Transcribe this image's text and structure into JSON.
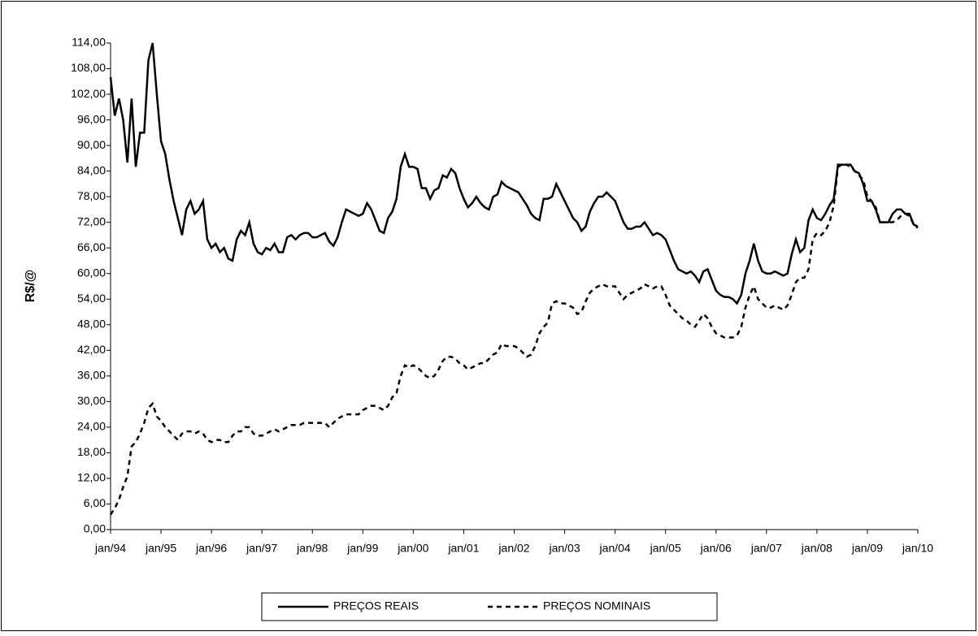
{
  "chart_data": {
    "type": "line",
    "y_label": "R$/@",
    "categories": [
      "jan/94",
      null,
      null,
      null,
      null,
      null,
      null,
      null,
      null,
      null,
      null,
      null,
      "jan/95",
      null,
      null,
      null,
      null,
      null,
      null,
      null,
      null,
      null,
      null,
      null,
      "jan/96",
      null,
      null,
      null,
      null,
      null,
      null,
      null,
      null,
      null,
      null,
      null,
      "jan/97",
      null,
      null,
      null,
      null,
      null,
      null,
      null,
      null,
      null,
      null,
      null,
      "jan/98",
      null,
      null,
      null,
      null,
      null,
      null,
      null,
      null,
      null,
      null,
      null,
      "jan/99",
      null,
      null,
      null,
      null,
      null,
      null,
      null,
      null,
      null,
      null,
      null,
      "jan/00",
      null,
      null,
      null,
      null,
      null,
      null,
      null,
      null,
      null,
      null,
      null,
      "jan/01",
      null,
      null,
      null,
      null,
      null,
      null,
      null,
      null,
      null,
      null,
      null,
      "jan/02",
      null,
      null,
      null,
      null,
      null,
      null,
      null,
      null,
      null,
      null,
      null,
      "jan/03",
      null,
      null,
      null,
      null,
      null,
      null,
      null,
      null,
      null,
      null,
      null,
      "jan/04",
      null,
      null,
      null,
      null,
      null,
      null,
      null,
      null,
      null,
      null,
      null,
      "jan/05",
      null,
      null,
      null,
      null,
      null,
      null,
      null,
      null,
      null,
      null,
      null,
      "jan/06",
      null,
      null,
      null,
      null,
      null,
      null,
      null,
      null,
      null,
      null,
      null,
      "jan/07",
      null,
      null,
      null,
      null,
      null,
      null,
      null,
      null,
      null,
      null,
      null,
      "jan/08",
      null,
      null,
      null,
      null,
      null,
      null,
      null,
      null,
      null,
      null,
      null,
      "jan/09",
      null,
      null,
      null,
      null,
      null,
      null,
      null,
      null,
      null,
      null,
      null,
      "jan/10"
    ],
    "series": [
      {
        "name": "PREÇOS REAIS",
        "color": "#000000",
        "dash": false,
        "values": [
          106,
          97,
          101,
          96,
          86,
          101,
          85,
          93,
          93,
          110,
          114,
          102,
          91,
          88,
          82,
          77,
          73,
          69,
          75,
          77,
          74,
          75,
          77,
          68,
          66,
          67,
          65,
          66,
          63.5,
          63,
          68,
          70,
          69,
          72,
          67,
          65,
          64.5,
          66,
          65.5,
          67,
          65,
          65,
          68.5,
          69,
          68,
          69,
          69.5,
          69.5,
          68.5,
          68.5,
          69,
          69.5,
          67.5,
          66.5,
          68.5,
          72,
          75,
          74.5,
          74,
          73.5,
          74,
          76.5,
          75,
          72.5,
          70,
          69.5,
          73,
          74.5,
          77.5,
          85,
          88,
          85,
          85,
          84.5,
          80,
          80,
          77.5,
          79.5,
          80,
          83,
          82.5,
          84.5,
          83.5,
          80,
          77.5,
          75.5,
          76.5,
          78,
          76.5,
          75.5,
          75,
          78,
          78.5,
          81.5,
          80.5,
          80,
          79.5,
          79,
          77.5,
          76,
          74,
          73,
          72.5,
          77.5,
          77.5,
          78,
          81,
          79,
          77,
          75,
          73,
          72,
          70,
          71,
          74.5,
          76.5,
          78,
          78,
          79,
          78,
          77,
          74.5,
          72,
          70.5,
          70.5,
          71,
          71,
          72,
          70.5,
          69,
          69.5,
          69,
          68,
          65.5,
          63,
          61,
          60.5,
          60,
          60.5,
          59.5,
          58,
          60.5,
          61,
          58.5,
          56,
          55,
          54.5,
          54.5,
          54,
          53,
          55,
          60,
          63,
          67,
          63,
          60.5,
          60,
          60,
          60.5,
          60,
          59.5,
          60,
          64.5,
          68,
          65,
          66,
          72.5,
          75,
          73,
          72.5,
          74,
          76,
          77.5,
          85.5,
          85.5,
          85.5,
          85.5,
          84,
          83.5,
          81,
          77,
          77,
          75,
          72,
          72,
          72,
          74,
          75,
          75,
          74,
          74,
          71.5,
          71
        ]
      },
      {
        "name": "PREÇOS NOMINAIS",
        "color": "#000000",
        "dash": true,
        "values": [
          3.5,
          5,
          7,
          10,
          12.5,
          19.5,
          20.5,
          22.5,
          25,
          28.5,
          29.5,
          26.5,
          25.5,
          24,
          23,
          22,
          21,
          22.5,
          23,
          23,
          22.5,
          23,
          22.5,
          21,
          20.5,
          21,
          21,
          20.5,
          20.5,
          22,
          23,
          23,
          24,
          24,
          22.5,
          22,
          22,
          22.5,
          23,
          23.5,
          23,
          23.5,
          24,
          24.5,
          24.5,
          24.5,
          25,
          25,
          25,
          25,
          25,
          25,
          24,
          25,
          26,
          26.5,
          27,
          27,
          27,
          27,
          28,
          28.5,
          29,
          29,
          28.5,
          28,
          29,
          31,
          32,
          36,
          38.5,
          38,
          38.5,
          38,
          37,
          36,
          35.5,
          36,
          37.5,
          39.5,
          40.5,
          40.5,
          40,
          39,
          38.5,
          37.5,
          38,
          38.5,
          39,
          39,
          40,
          41,
          41.5,
          43.5,
          43,
          43,
          43,
          42.5,
          41.5,
          40.5,
          41,
          43,
          46,
          47.5,
          48.5,
          53,
          53.5,
          53,
          53,
          52.5,
          52,
          50.5,
          51,
          53.5,
          55.5,
          56.5,
          57,
          57.5,
          57,
          57,
          57,
          55.5,
          54,
          55,
          55.5,
          56,
          56.5,
          57.5,
          57,
          56.5,
          57,
          57,
          55,
          52.5,
          51.5,
          50.5,
          49.5,
          49,
          48,
          47.5,
          49,
          50.5,
          49.5,
          47.5,
          46,
          45.5,
          45,
          45,
          45,
          45.5,
          47.5,
          52,
          55,
          57,
          54,
          53,
          52,
          52,
          52.5,
          52,
          51.5,
          52.5,
          55,
          58,
          59,
          59,
          61,
          68,
          69.5,
          69,
          70,
          72,
          76,
          85,
          85.5,
          85.5,
          85,
          84,
          83,
          82,
          78,
          77,
          75.5,
          72,
          72,
          72,
          72,
          72.5,
          73.5,
          74,
          73.5,
          71.5,
          70.7
        ]
      }
    ],
    "ylim": [
      0,
      114
    ],
    "yticks": [
      {
        "value": 0,
        "label": "0,00"
      },
      {
        "value": 6,
        "label": "6,00"
      },
      {
        "value": 12,
        "label": "12,00"
      },
      {
        "value": 18,
        "label": "18,00"
      },
      {
        "value": 24,
        "label": "24,00"
      },
      {
        "value": 30,
        "label": "30,00"
      },
      {
        "value": 36,
        "label": "36,00"
      },
      {
        "value": 42,
        "label": "42,00"
      },
      {
        "value": 48,
        "label": "48,00"
      },
      {
        "value": 54,
        "label": "54,00"
      },
      {
        "value": 60,
        "label": "60,00"
      },
      {
        "value": 66,
        "label": "66,00"
      },
      {
        "value": 72,
        "label": "72,00"
      },
      {
        "value": 78,
        "label": "78,00"
      },
      {
        "value": 84,
        "label": "84,00"
      },
      {
        "value": 90,
        "label": "90,00"
      },
      {
        "value": 96,
        "label": "96,00"
      },
      {
        "value": 102,
        "label": "102,00"
      },
      {
        "value": 108,
        "label": "108,00"
      },
      {
        "value": 114,
        "label": "114,00"
      }
    ],
    "grid": false,
    "legend": "bottom"
  }
}
